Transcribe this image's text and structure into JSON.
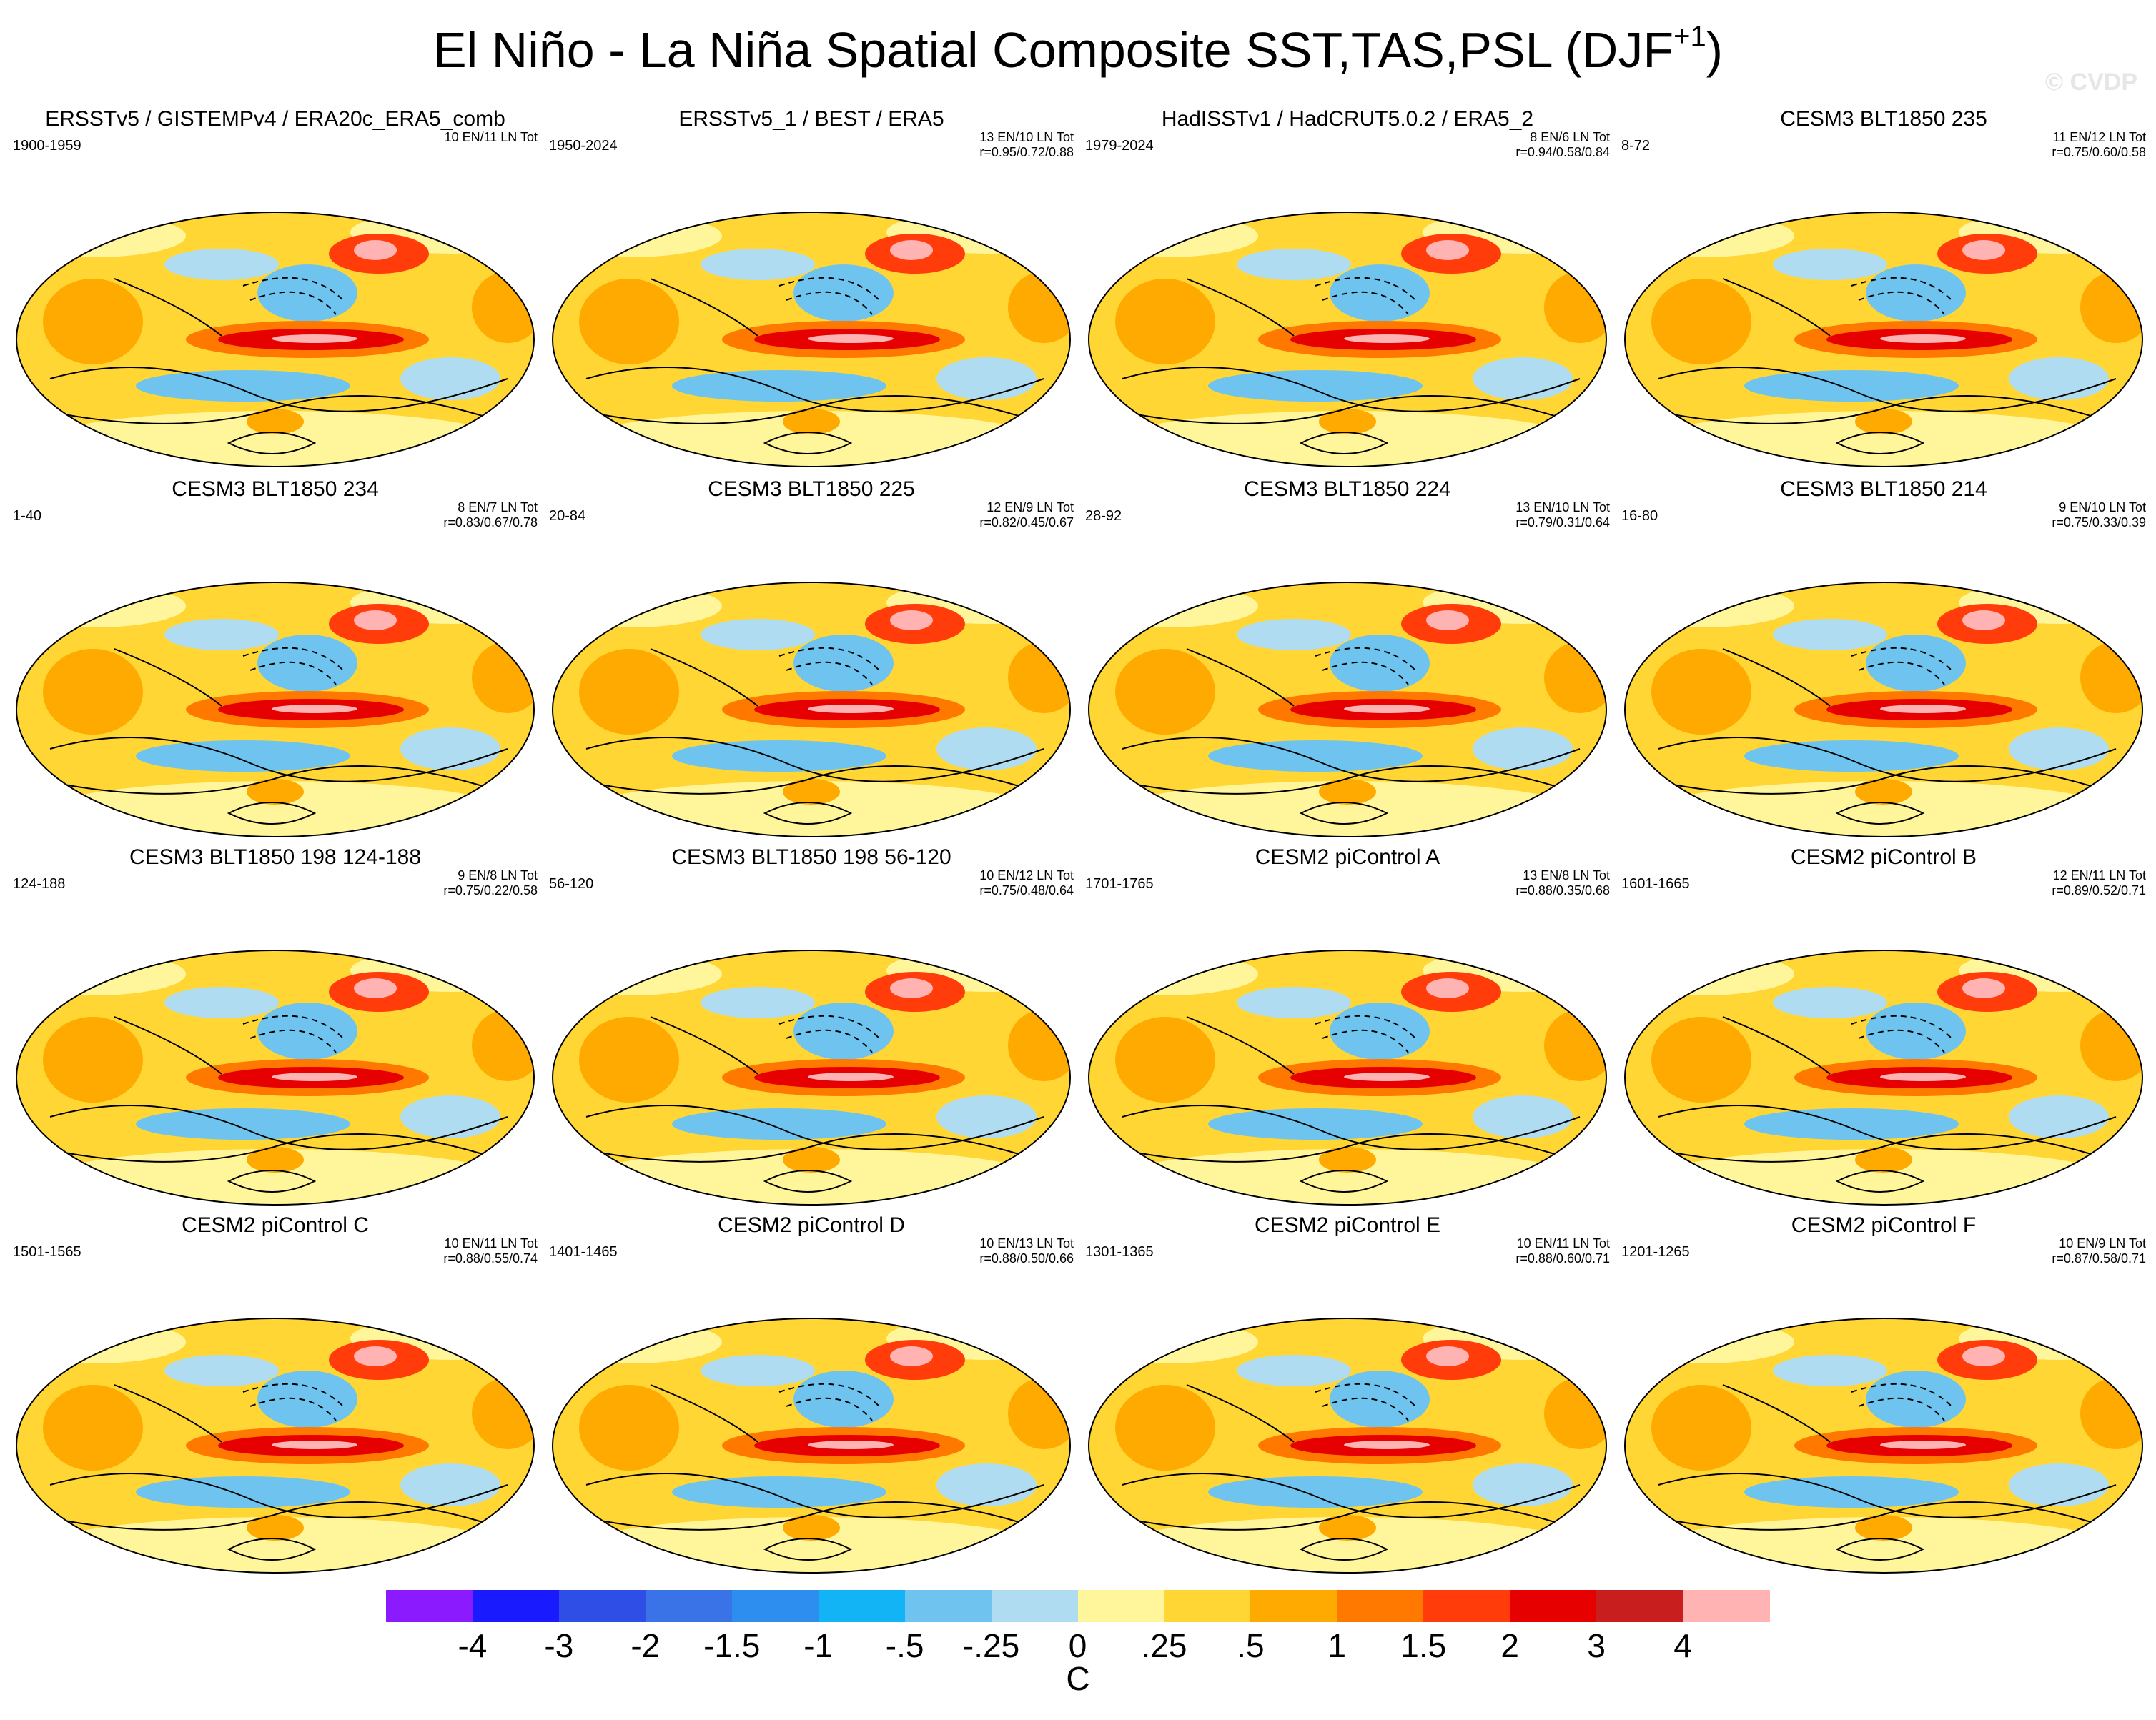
{
  "title": {
    "main": "El Niño - La Niña Spatial Composite SST,TAS,PSL (DJF",
    "superscript": "+1",
    "close": ")"
  },
  "watermark": "© CVDP",
  "panels": [
    {
      "title": "ERSSTv5 / GISTEMPv4 / ERA20c_ERA5_comb",
      "years": "1900-1959",
      "counts": "10 EN/11 LN Tot",
      "corr": ""
    },
    {
      "title": "ERSSTv5_1 / BEST / ERA5",
      "years": "1950-2024",
      "counts": "13 EN/10 LN Tot",
      "corr": "r=0.95/0.72/0.88"
    },
    {
      "title": "HadISSTv1 / HadCRUT5.0.2 / ERA5_2",
      "years": "1979-2024",
      "counts": "8 EN/6 LN Tot",
      "corr": "r=0.94/0.58/0.84"
    },
    {
      "title": "CESM3 BLT1850 235",
      "years": "8-72",
      "counts": "11 EN/12 LN Tot",
      "corr": "r=0.75/0.60/0.58"
    },
    {
      "title": "CESM3 BLT1850 234",
      "years": "1-40",
      "counts": "8 EN/7 LN Tot",
      "corr": "r=0.83/0.67/0.78"
    },
    {
      "title": "CESM3 BLT1850 225",
      "years": "20-84",
      "counts": "12 EN/9 LN Tot",
      "corr": "r=0.82/0.45/0.67"
    },
    {
      "title": "CESM3 BLT1850 224",
      "years": "28-92",
      "counts": "13 EN/10 LN Tot",
      "corr": "r=0.79/0.31/0.64"
    },
    {
      "title": "CESM3 BLT1850 214",
      "years": "16-80",
      "counts": "9 EN/10 LN Tot",
      "corr": "r=0.75/0.33/0.39"
    },
    {
      "title": "CESM3 BLT1850 198 124-188",
      "years": "124-188",
      "counts": "9 EN/8 LN Tot",
      "corr": "r=0.75/0.22/0.58"
    },
    {
      "title": "CESM3 BLT1850 198 56-120",
      "years": "56-120",
      "counts": "10 EN/12 LN Tot",
      "corr": "r=0.75/0.48/0.64"
    },
    {
      "title": "CESM2 piControl A",
      "years": "1701-1765",
      "counts": "13 EN/8 LN Tot",
      "corr": "r=0.88/0.35/0.68"
    },
    {
      "title": "CESM2 piControl B",
      "years": "1601-1665",
      "counts": "12 EN/11 LN Tot",
      "corr": "r=0.89/0.52/0.71"
    },
    {
      "title": "CESM2 piControl C",
      "years": "1501-1565",
      "counts": "10 EN/11 LN Tot",
      "corr": "r=0.88/0.55/0.74"
    },
    {
      "title": "CESM2 piControl D",
      "years": "1401-1465",
      "counts": "10 EN/13 LN Tot",
      "corr": "r=0.88/0.50/0.66"
    },
    {
      "title": "CESM2 piControl E",
      "years": "1301-1365",
      "counts": "10 EN/11 LN Tot",
      "corr": "r=0.88/0.60/0.71"
    },
    {
      "title": "CESM2 piControl F",
      "years": "1201-1265",
      "counts": "10 EN/9 LN Tot",
      "corr": "r=0.87/0.58/0.71"
    }
  ],
  "colorbar": {
    "colors": [
      "#8c1aff",
      "#1a1aff",
      "#2e4ee6",
      "#3a72e8",
      "#2e8ef0",
      "#12b4f5",
      "#6ec4ee",
      "#b0dcf2",
      "#fff59a",
      "#ffd633",
      "#ffaa00",
      "#ff7800",
      "#ff3c0a",
      "#e60000",
      "#c81e1e",
      "#ffb3b3"
    ],
    "labels": [
      "-4",
      "-3",
      "-2",
      "-1.5",
      "-1",
      "-.5",
      "-.25",
      "0",
      ".25",
      ".5",
      "1",
      "1.5",
      "2",
      "3",
      "4"
    ],
    "units": "C"
  },
  "chart_data": {
    "type": "heatmap",
    "description_variables": "SST,TAS,PSL",
    "season": "DJF+1",
    "projection": "global",
    "levels": [
      -4,
      -3,
      -2,
      -1.5,
      -1,
      -0.5,
      -0.25,
      0,
      0.25,
      0.5,
      1,
      1.5,
      2,
      3,
      4
    ],
    "units": "C",
    "n_panels": 16
  }
}
